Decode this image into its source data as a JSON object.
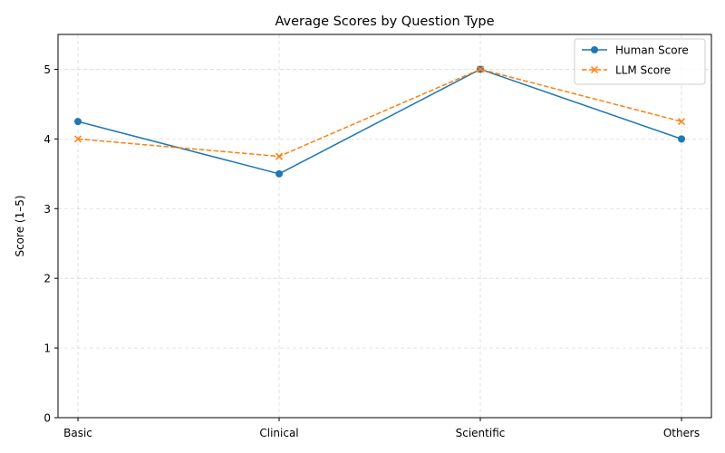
{
  "chart_data": {
    "type": "line",
    "title": "Average Scores by Question Type",
    "xlabel": "",
    "ylabel": "Score (1–5)",
    "categories": [
      "Basic",
      "Clinical",
      "Scientific",
      "Others"
    ],
    "series": [
      {
        "name": "Human Score",
        "values": [
          4.25,
          3.5,
          5.0,
          4.0
        ],
        "color": "#1f77b4",
        "marker": "circle",
        "linestyle": "solid"
      },
      {
        "name": "LLM Score",
        "values": [
          4.0,
          3.75,
          5.0,
          4.25
        ],
        "color": "#ff7f0e",
        "marker": "x",
        "linestyle": "dashed"
      }
    ],
    "ylim": [
      0,
      5.5
    ],
    "yticks": [
      0,
      1,
      2,
      3,
      4,
      5
    ],
    "grid": true,
    "legend_position": "top-right"
  }
}
